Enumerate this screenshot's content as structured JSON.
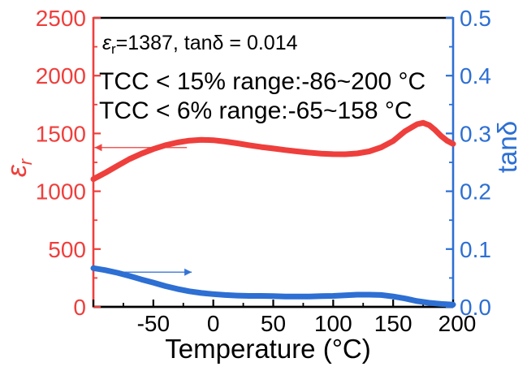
{
  "chart_data": {
    "type": "line",
    "title": "",
    "xlabel": "Temperature (°C)",
    "x_range": [
      -100,
      200
    ],
    "x_major_step": 50,
    "x_minor_step": 25,
    "x_tick_labels": [
      "-50",
      "0",
      "50",
      "100",
      "150",
      "200"
    ],
    "x_tick_values": [
      -50,
      0,
      50,
      100,
      150,
      200
    ],
    "left_axis": {
      "label_symbol": "ε",
      "label_subscript": "r",
      "range": [
        0,
        2500
      ],
      "major_step": 500,
      "minor_step": 250,
      "tick_labels": [
        "0",
        "500",
        "1000",
        "1500",
        "2000",
        "2500"
      ],
      "tick_values": [
        0,
        500,
        1000,
        1500,
        2000,
        2500
      ],
      "color": "#ee3f3c"
    },
    "right_axis": {
      "label": "tanδ",
      "range": [
        0,
        0.5
      ],
      "major_step": 0.1,
      "minor_step": 0.05,
      "tick_labels": [
        "0.0",
        "0.1",
        "0.2",
        "0.3",
        "0.4",
        "0.5"
      ],
      "tick_values": [
        0,
        0.1,
        0.2,
        0.3,
        0.4,
        0.5
      ],
      "color": "#2d6fd3"
    },
    "frame_color": "#000000",
    "series": [
      {
        "name": "epsilon-r",
        "axis": "left",
        "color": "#ee3f3c",
        "x": [
          -100,
          -90,
          -80,
          -70,
          -60,
          -50,
          -40,
          -30,
          -20,
          -10,
          0,
          10,
          20,
          30,
          40,
          50,
          60,
          70,
          80,
          90,
          100,
          110,
          120,
          130,
          140,
          150,
          160,
          170,
          175,
          180,
          185,
          190,
          195,
          200
        ],
        "y": [
          1105,
          1160,
          1220,
          1278,
          1325,
          1365,
          1398,
          1422,
          1438,
          1445,
          1442,
          1430,
          1415,
          1398,
          1383,
          1370,
          1357,
          1345,
          1334,
          1326,
          1321,
          1320,
          1327,
          1345,
          1380,
          1435,
          1520,
          1580,
          1592,
          1572,
          1530,
          1478,
          1437,
          1410
        ]
      },
      {
        "name": "tan-delta",
        "axis": "right",
        "color": "#2d6fd3",
        "x": [
          -100,
          -90,
          -80,
          -70,
          -60,
          -50,
          -40,
          -30,
          -20,
          -10,
          0,
          10,
          20,
          30,
          40,
          50,
          60,
          70,
          80,
          90,
          100,
          110,
          120,
          130,
          140,
          150,
          160,
          170,
          180,
          190,
          200
        ],
        "y": [
          0.067,
          0.0635,
          0.059,
          0.0535,
          0.0475,
          0.042,
          0.036,
          0.031,
          0.027,
          0.024,
          0.022,
          0.0205,
          0.0195,
          0.019,
          0.019,
          0.0185,
          0.018,
          0.018,
          0.018,
          0.0185,
          0.019,
          0.02,
          0.021,
          0.021,
          0.0205,
          0.018,
          0.0145,
          0.01,
          0.007,
          0.005,
          0.004
        ]
      }
    ],
    "annotations": {
      "line1": {
        "epsilon": "ε",
        "subscript": "r",
        "rest": "=1387, tanδ = 0.014"
      },
      "line2": "TCC < 15% range:-86~200 °C",
      "line3": "TCC < 6% range:-65~158 °C"
    },
    "arrows": [
      {
        "name": "epsilon-axis-arrow",
        "axis": "left",
        "value": 1378,
        "x_from": -22,
        "x_to": -99,
        "direction": "left",
        "color": "#ee3f3c"
      },
      {
        "name": "tan-delta-axis-arrow",
        "axis": "right",
        "value": 0.06,
        "x_from": -75,
        "x_to": -18,
        "direction": "right",
        "color": "#2d6fd3"
      }
    ],
    "legend": null,
    "grid": false
  }
}
